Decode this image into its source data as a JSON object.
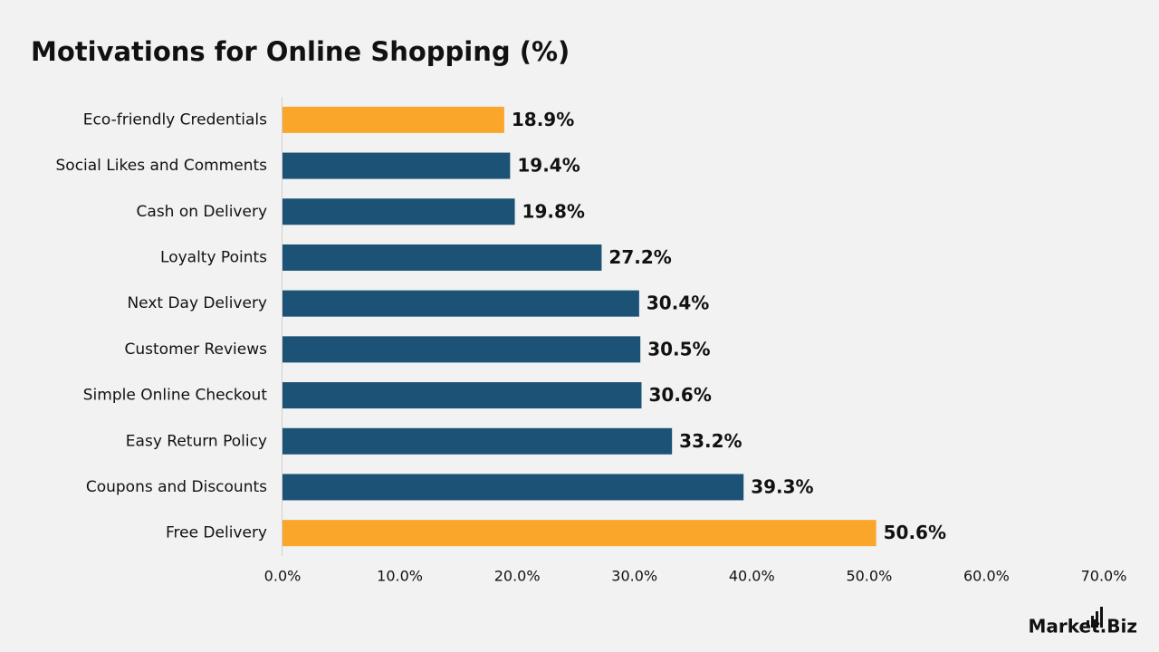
{
  "chart_data": {
    "type": "bar",
    "orientation": "horizontal",
    "title": "Motivations for Online Shopping (%)",
    "categories": [
      "Eco-friendly Credentials",
      "Social Likes and Comments",
      "Cash on Delivery",
      "Loyalty Points",
      "Next Day Delivery",
      "Customer Reviews",
      "Simple Online Checkout",
      "Easy Return Policy",
      "Coupons and Discounts",
      "Free Delivery"
    ],
    "values": [
      18.9,
      19.4,
      19.8,
      27.2,
      30.4,
      30.5,
      30.6,
      33.2,
      39.3,
      50.6
    ],
    "value_labels": [
      "18.9%",
      "19.4%",
      "19.8%",
      "27.2%",
      "30.4%",
      "30.5%",
      "30.6%",
      "33.2%",
      "39.3%",
      "50.6%"
    ],
    "colors": [
      "#f9a62b",
      "#1b5276",
      "#1b5276",
      "#1b5276",
      "#1b5276",
      "#1b5276",
      "#1b5276",
      "#1b5276",
      "#1b5276",
      "#f9a62b"
    ],
    "xlim": [
      0,
      70
    ],
    "xticks": [
      {
        "value": 0,
        "label": "0.0%"
      },
      {
        "value": 10,
        "label": "10.0%"
      },
      {
        "value": 20,
        "label": "20.0%"
      },
      {
        "value": 30,
        "label": "30.0%"
      },
      {
        "value": 40,
        "label": "40.0%"
      },
      {
        "value": 50,
        "label": "50.0%"
      },
      {
        "value": 60,
        "label": "60.0%"
      },
      {
        "value": 70,
        "label": "70.0%"
      }
    ],
    "grid": false
  },
  "brand": "Market.Biz"
}
